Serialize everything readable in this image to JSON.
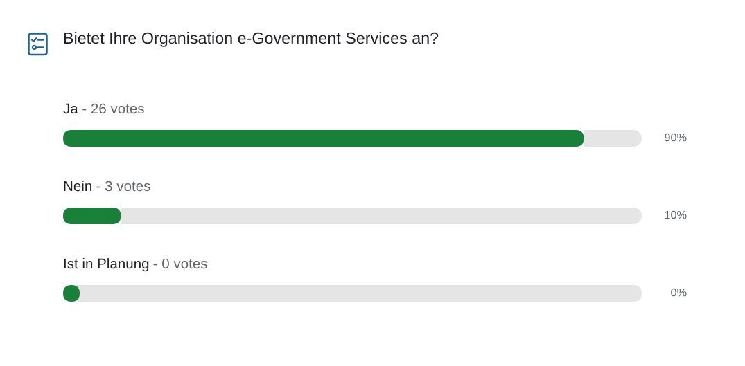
{
  "chart_data": {
    "type": "bar",
    "orientation": "horizontal",
    "stacked": true,
    "title": "Bietet Ihre Organisation e-Government Services an?",
    "categories": [
      "Ja",
      "Nein",
      "Ist in Planung"
    ],
    "series": [
      {
        "color": "#188038",
        "values": [
          90,
          10,
          0
        ],
        "value_labels": [
          "90%",
          "10%",
          "0%"
        ]
      },
      {
        "color": "#e5e5e5",
        "values": [
          10,
          90,
          100
        ]
      }
    ],
    "xlim": [
      0,
      100
    ],
    "tick_labels": "y",
    "annotations": [
      "- 26 votes",
      "- 3 votes",
      "- 0 votes"
    ]
  }
}
